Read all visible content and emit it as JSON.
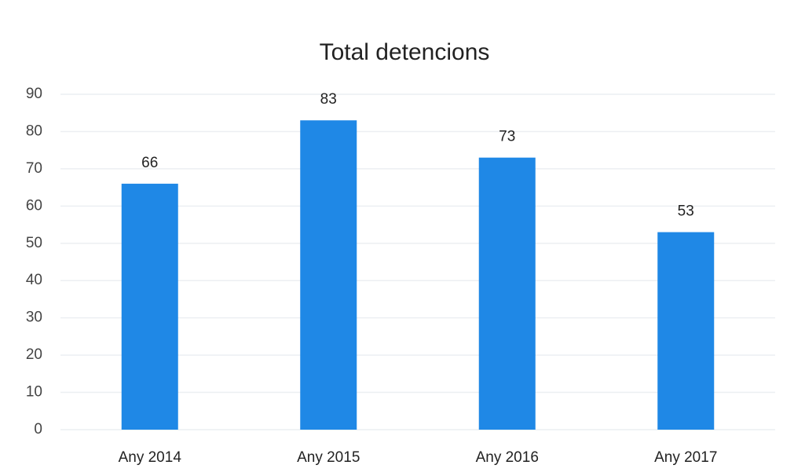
{
  "chart_data": {
    "type": "bar",
    "title": "Total detencions",
    "categories": [
      "Any 2014",
      "Any 2015",
      "Any 2016",
      "Any 2017"
    ],
    "values": [
      66,
      83,
      73,
      53
    ],
    "color": "#1f88e6",
    "ylim": [
      0,
      90
    ],
    "yticks": [
      0,
      10,
      20,
      30,
      40,
      50,
      60,
      70,
      80,
      90
    ],
    "grid": true
  }
}
